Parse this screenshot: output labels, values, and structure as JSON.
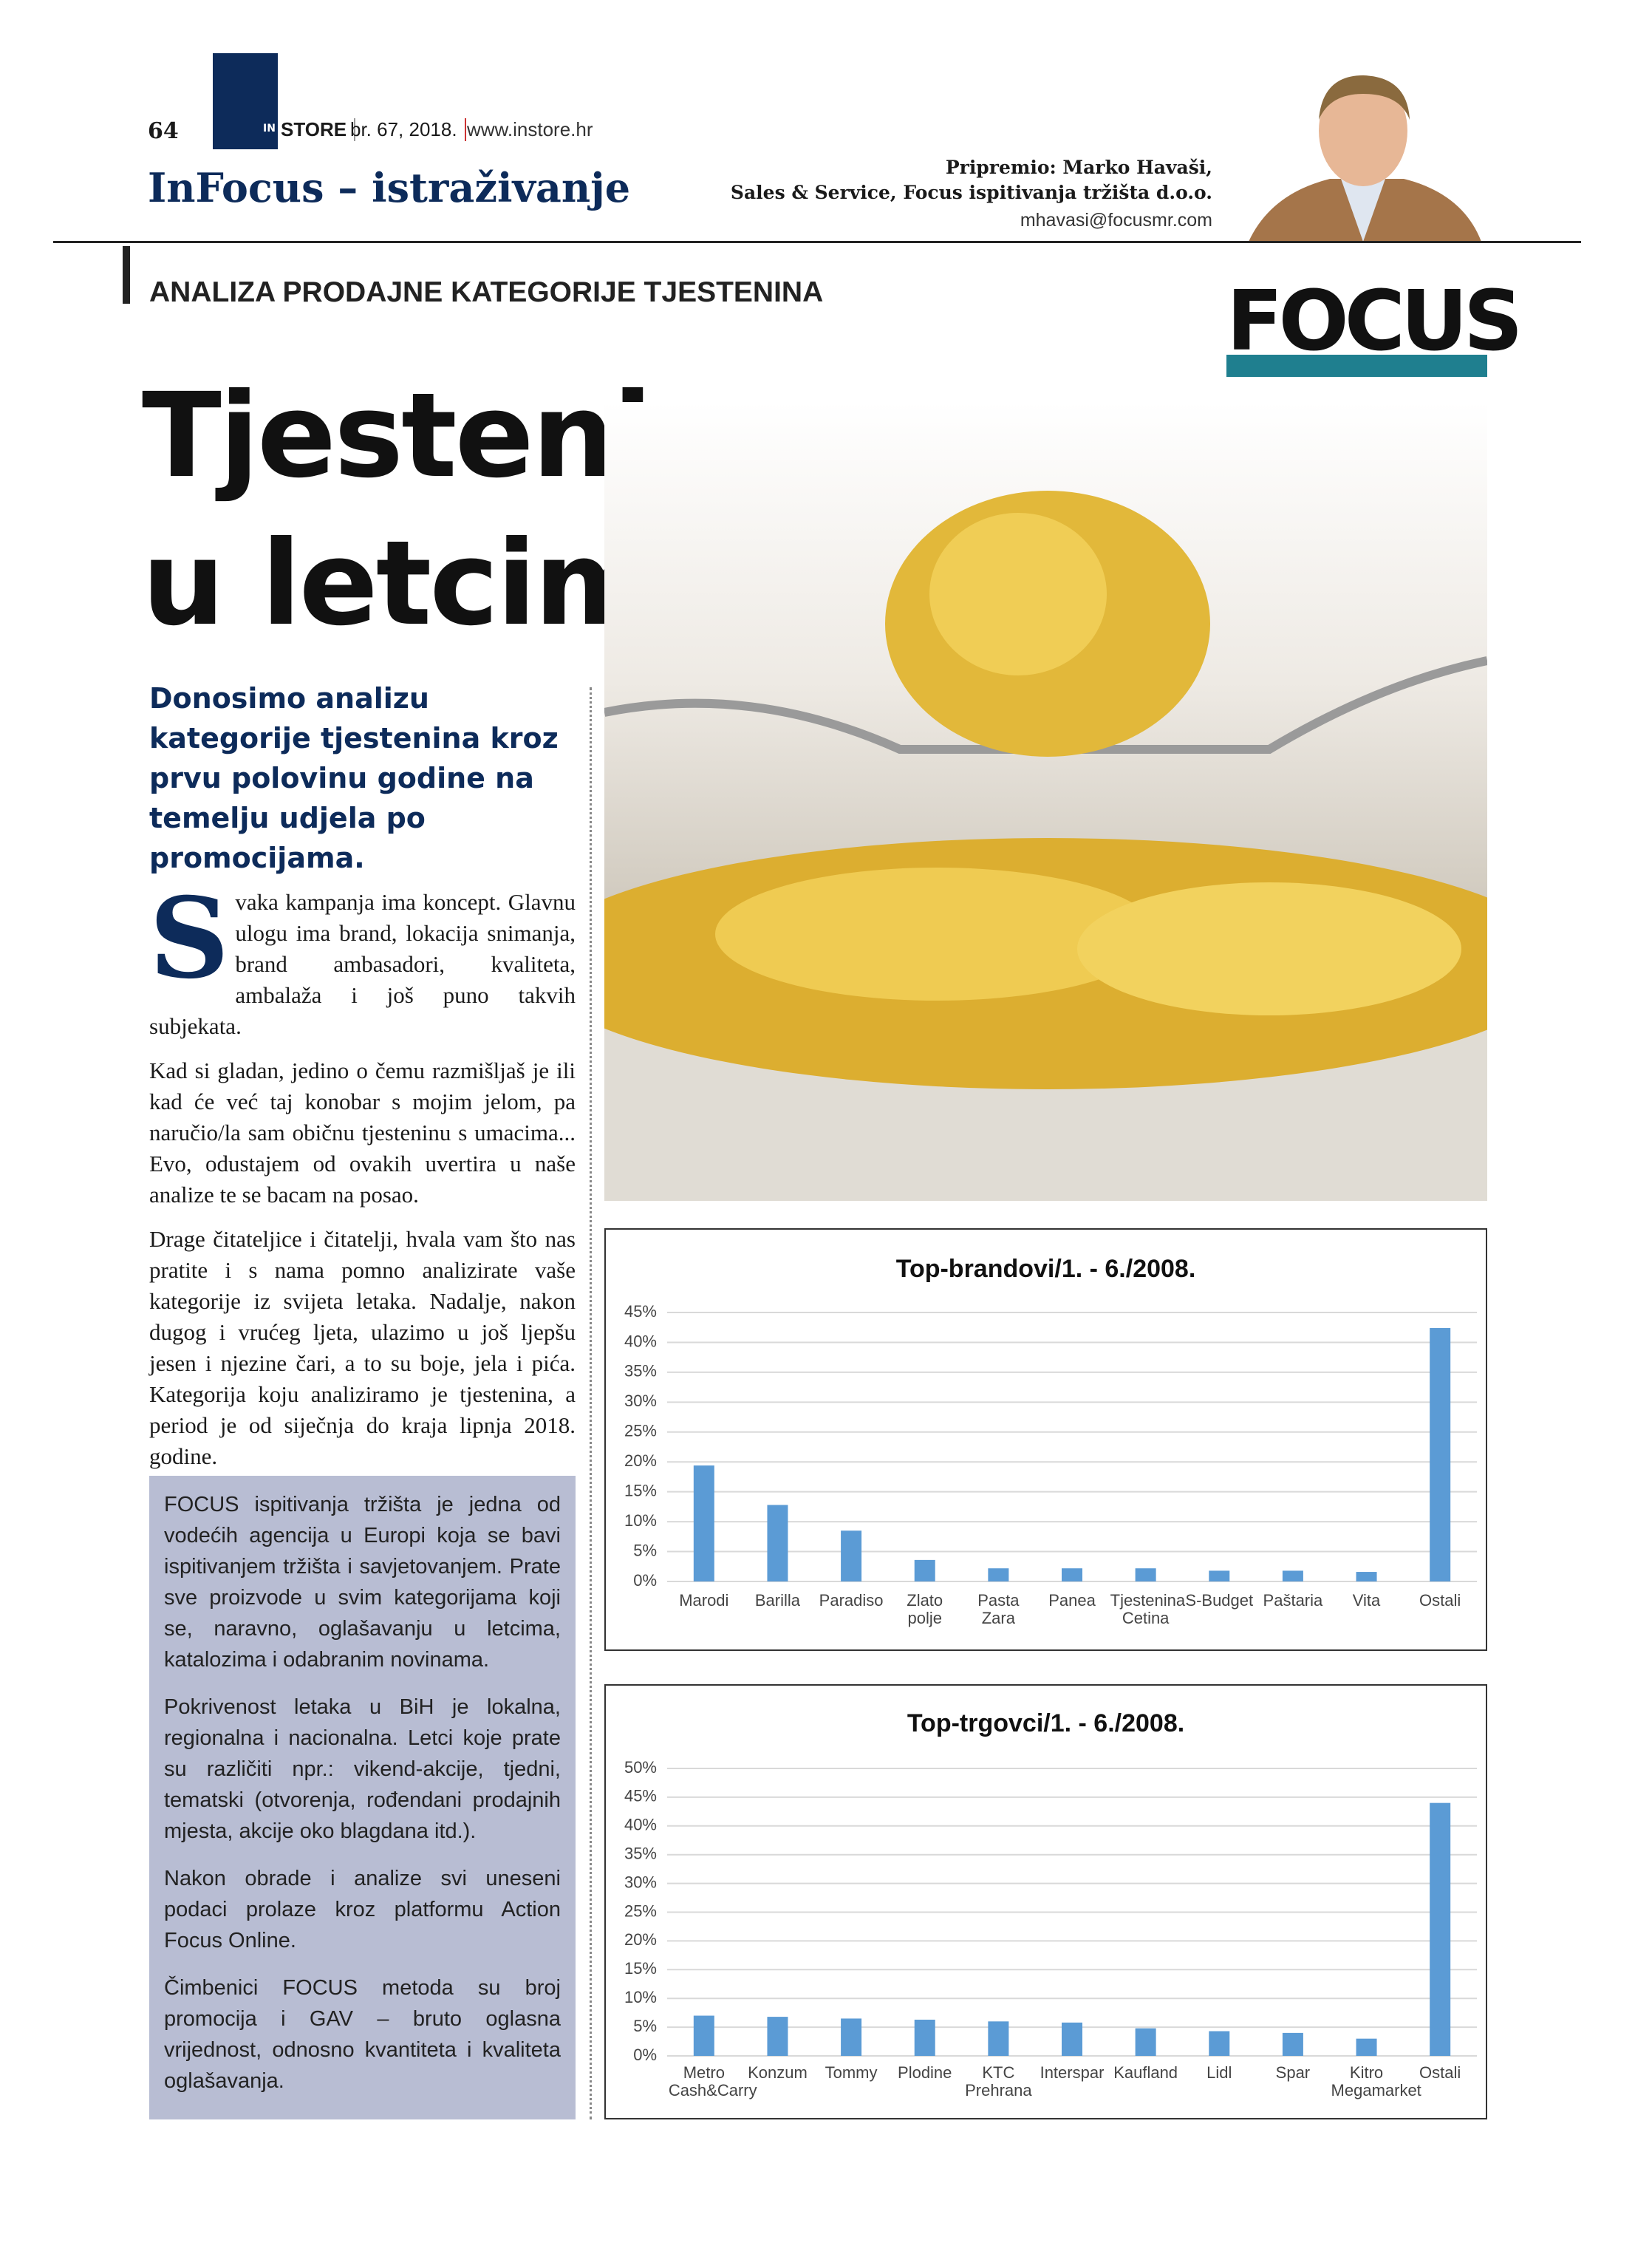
{
  "header": {
    "page_number": "64",
    "brand_in": "IN",
    "brand_store": "STORE",
    "issue": "br. 67, 2018.",
    "website": "www.instore.hr",
    "section": "InFocus – istraživanje",
    "author_line": "Pripremio: Marko Havaši,",
    "author_company": "Sales & Service, Focus ispitivanja tržišta d.o.o.",
    "author_email": "mhavasi@focusmr.com"
  },
  "logo": {
    "text": "FOCUS"
  },
  "article": {
    "kicker": "ANALIZA PRODAJNE KATEGORIJE TJESTENINA",
    "title_line1": "Tjestenina",
    "title_line2": "u letcima",
    "lead": "Donosimo analizu kategorije tjestenina kroz prvu polovinu godine na temelju udjela po promocijama.",
    "drop_cap": "S",
    "paragraphs": [
      "vaka kampanja ima koncept. Glavnu ulogu ima brand, lokacija snimanja, brand ambasadori, kvaliteta, ambalaža i još puno takvih subjekata.",
      "Kad si gladan, jedino o čemu razmišljaš je ili kad će već taj konobar s mojim jelom, pa naručio/la sam običnu tjesteninu s umacima... Evo, odustajem od ovakih uvertira u naše analize te se bacam na posao.",
      "Drage čitateljice i čitatelji, hvala vam što nas pratite i s nama pomno analizirate vaše kategorije iz svijeta letaka. Nadalje, nakon dugog i vrućeg ljeta, ulazimo u još ljepšu jesen i njezine čari, a to su boje, jela i pića. Kategorija koju analiziramo je tjestenina, a period je od siječnja do kraja lipnja 2018. godine."
    ],
    "box_paragraphs": [
      "FOCUS ispitivanja tržišta je jedna od vodećih agencija u Europi koja se bavi ispitivanjem tržišta i savjetovanjem. Prate sve proizvode u svim kategorijama koji se, naravno, oglašavanju u letcima, katalozima i odabranim novinama.",
      "Pokrivenost letaka u BiH je lokalna, regionalna i nacionalna. Letci koje prate su različiti npr.: vikend-akcije, tjedni, tematski (otvorenja, rođendani prodajnih mjesta, akcije oko blagdana itd.).",
      "Nakon obrade i analize svi uneseni podaci prolaze kroz platformu Action Focus Online.",
      "Čimbenici FOCUS metoda su broj promocija i GAV – bruto oglasna vrijednost, odnosno kvantiteta i kvaliteta oglašavanja."
    ]
  },
  "chart_data": [
    {
      "type": "bar",
      "title": "Top-brandovi/1. - 6./2008.",
      "categories": [
        "Marodi",
        "Barilla",
        "Paradiso",
        "Zlato polje",
        "Pasta Zara",
        "Panea",
        "Tjestenina Cetina",
        "S-Budget",
        "Paštaria",
        "Vita",
        "Ostali"
      ],
      "values": [
        19.4,
        12.8,
        8.5,
        3.6,
        2.2,
        2.2,
        2.2,
        1.8,
        1.8,
        1.6,
        42.4
      ],
      "color": "#5b9bd5",
      "ylim": [
        0,
        45
      ],
      "yticks": [
        {
          "value": 0,
          "label": "0%"
        },
        {
          "value": 5,
          "label": "5%"
        },
        {
          "value": 10,
          "label": "10%"
        },
        {
          "value": 15,
          "label": "15%"
        },
        {
          "value": 20,
          "label": "20%"
        },
        {
          "value": 25,
          "label": "25%"
        },
        {
          "value": 30,
          "label": "30%"
        },
        {
          "value": 35,
          "label": "35%"
        },
        {
          "value": 40,
          "label": "40%"
        },
        {
          "value": 45,
          "label": "45%"
        }
      ],
      "grid": true
    },
    {
      "type": "bar",
      "title": "Top-trgovci/1. - 6./2008.",
      "categories": [
        "Metro Cash&Carry",
        "Konzum",
        "Tommy",
        "Plodine",
        "KTC Prehrana",
        "Interspar",
        "Kaufland",
        "Lidl",
        "Spar",
        "Kitro Megamarket",
        "Ostali"
      ],
      "values": [
        7.0,
        6.8,
        6.5,
        6.3,
        6.0,
        5.8,
        4.8,
        4.3,
        4.0,
        3.0,
        44.0
      ],
      "color": "#5b9bd5",
      "ylim": [
        0,
        50
      ],
      "yticks": [
        {
          "value": 0,
          "label": "0%"
        },
        {
          "value": 5,
          "label": "5%"
        },
        {
          "value": 10,
          "label": "10%"
        },
        {
          "value": 15,
          "label": "15%"
        },
        {
          "value": 20,
          "label": "20%"
        },
        {
          "value": 25,
          "label": "25%"
        },
        {
          "value": 30,
          "label": "30%"
        },
        {
          "value": 35,
          "label": "35%"
        },
        {
          "value": 40,
          "label": "40%"
        },
        {
          "value": 45,
          "label": "45%"
        },
        {
          "value": 50,
          "label": "50%"
        }
      ],
      "grid": true
    }
  ]
}
